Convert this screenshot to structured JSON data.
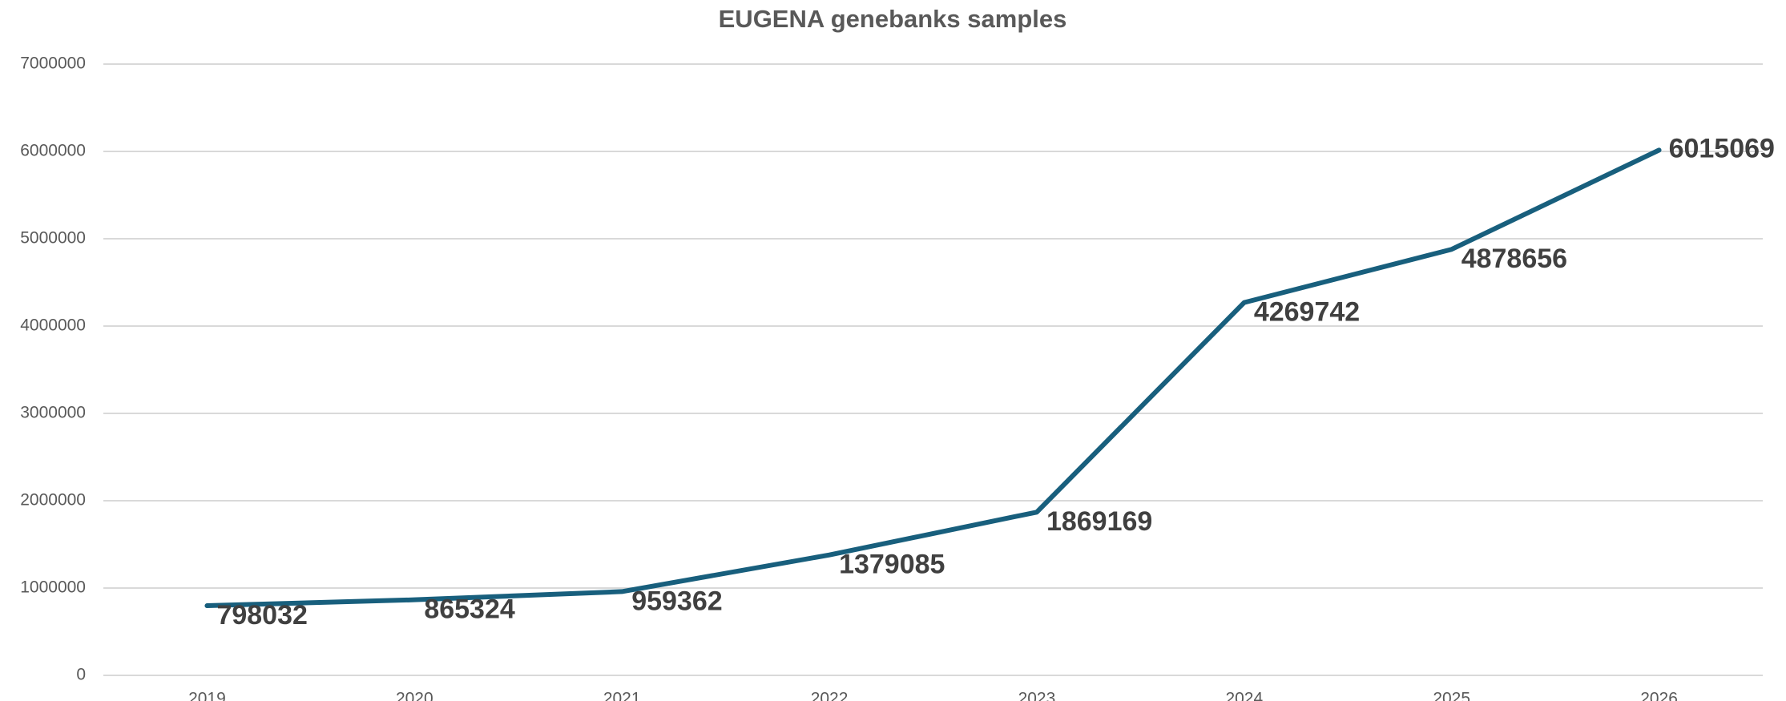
{
  "chart_data": {
    "type": "line",
    "title": "EUGENA genebanks samples",
    "categories": [
      "2019",
      "2020",
      "2021",
      "2022",
      "2023",
      "2024",
      "2025",
      "2026"
    ],
    "series": [
      {
        "color": "#185f7d",
        "values": [
          798032,
          865324,
          959362,
          1379085,
          1869169,
          4269742,
          4878656,
          6015069
        ]
      }
    ],
    "ylim": [
      0,
      7000000
    ],
    "yticks": [
      0,
      1000000,
      2000000,
      3000000,
      4000000,
      5000000,
      6000000,
      7000000
    ],
    "grid": true
  }
}
